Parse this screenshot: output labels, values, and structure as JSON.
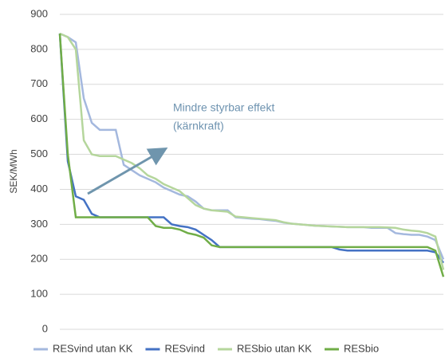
{
  "chart_data": {
    "type": "line",
    "y_label": "SEK/MWh",
    "annotation": [
      "Mindre styrbar effekt",
      "(kärnkraft)"
    ],
    "categories": [
      null,
      null,
      null,
      null,
      null,
      null,
      null,
      null,
      null,
      null,
      null,
      null,
      null,
      null,
      null,
      null,
      null,
      null,
      null,
      null,
      null,
      null,
      null,
      null,
      null,
      null,
      null,
      null,
      null,
      null,
      null,
      null,
      null,
      null,
      null,
      null,
      null,
      null,
      null,
      null,
      null,
      null,
      null,
      null,
      null,
      null,
      null,
      null,
      null
    ],
    "ylim": [
      0,
      900
    ],
    "yticks": [
      0,
      100,
      200,
      300,
      400,
      500,
      600,
      700,
      800,
      900
    ],
    "grid": true,
    "series": [
      {
        "name": "RESvind utan KK",
        "color": "#a4b8de",
        "values": [
          845,
          835,
          820,
          660,
          590,
          570,
          570,
          570,
          470,
          455,
          440,
          430,
          420,
          405,
          395,
          385,
          380,
          365,
          345,
          340,
          340,
          340,
          320,
          318,
          316,
          315,
          312,
          310,
          305,
          302,
          300,
          298,
          296,
          295,
          294,
          293,
          292,
          292,
          292,
          290,
          290,
          290,
          275,
          272,
          270,
          270,
          265,
          255,
          200
        ]
      },
      {
        "name": "RESvind",
        "color": "#4472c4",
        "values": [
          845,
          480,
          380,
          370,
          330,
          320,
          320,
          320,
          320,
          320,
          320,
          320,
          320,
          320,
          300,
          295,
          292,
          285,
          270,
          255,
          235,
          235,
          235,
          235,
          235,
          235,
          235,
          235,
          235,
          235,
          235,
          235,
          235,
          235,
          235,
          228,
          225,
          225,
          225,
          225,
          225,
          225,
          225,
          225,
          225,
          225,
          225,
          220,
          190
        ]
      },
      {
        "name": "RESbio utan KK",
        "color": "#b5d69c",
        "values": [
          845,
          835,
          800,
          540,
          500,
          495,
          495,
          495,
          485,
          475,
          460,
          440,
          430,
          415,
          405,
          395,
          375,
          355,
          345,
          340,
          338,
          336,
          322,
          320,
          318,
          316,
          314,
          312,
          306,
          302,
          300,
          298,
          296,
          295,
          294,
          293,
          292,
          292,
          292,
          292,
          292,
          291,
          290,
          285,
          282,
          280,
          275,
          265,
          170
        ]
      },
      {
        "name": "RESbio",
        "color": "#70ad47",
        "values": [
          845,
          500,
          320,
          320,
          320,
          320,
          320,
          320,
          320,
          320,
          320,
          320,
          295,
          290,
          290,
          285,
          275,
          270,
          262,
          240,
          235,
          235,
          235,
          235,
          235,
          235,
          235,
          235,
          235,
          235,
          235,
          235,
          235,
          235,
          235,
          235,
          235,
          235,
          235,
          235,
          235,
          235,
          235,
          235,
          235,
          235,
          235,
          225,
          150
        ]
      }
    ]
  }
}
